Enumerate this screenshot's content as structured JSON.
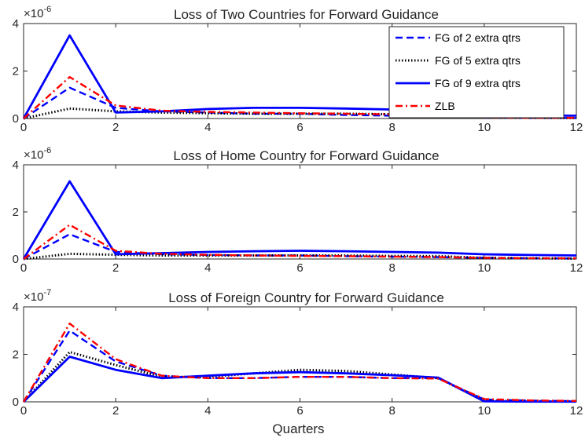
{
  "colors": {
    "fg2": "#0000ff",
    "fg5": "#000000",
    "fg9": "#0000ff",
    "zlb": "#ff0000"
  },
  "legend": {
    "placement": "top-right",
    "items": [
      "FG of 2 extra qtrs",
      "FG of 5 extra qtrs",
      "FG of 9 extra qtrs",
      "ZLB"
    ]
  },
  "chart_data": [
    {
      "type": "line",
      "title": "Loss of Two Countries for Forward Guidance",
      "xlabel": "",
      "ylabel": "",
      "exponent": "-6",
      "xlim": [
        0,
        12
      ],
      "ylim": [
        0,
        4
      ],
      "xticks": [
        "0",
        "2",
        "4",
        "6",
        "8",
        "10",
        "12"
      ],
      "yticks": [
        "0",
        "2",
        "4"
      ],
      "x": [
        0,
        1,
        2,
        3,
        4,
        5,
        6,
        7,
        8,
        9,
        10,
        11,
        12
      ],
      "series": [
        {
          "name": "FG of 2 extra qtrs",
          "style": "dashed",
          "values": [
            0,
            1.3,
            0.45,
            0.3,
            0.25,
            0.2,
            0.2,
            0.15,
            0.12,
            0.1,
            0.05,
            0.03,
            0.02
          ]
        },
        {
          "name": "FG of 5 extra qtrs",
          "style": "dotted",
          "values": [
            0,
            0.42,
            0.3,
            0.25,
            0.22,
            0.2,
            0.2,
            0.2,
            0.18,
            0.15,
            0.05,
            0.03,
            0.02
          ]
        },
        {
          "name": "FG of 9 extra qtrs",
          "style": "solid",
          "values": [
            0,
            3.5,
            0.25,
            0.3,
            0.4,
            0.45,
            0.45,
            0.42,
            0.38,
            0.33,
            0.15,
            0.13,
            0.12
          ]
        },
        {
          "name": "ZLB",
          "style": "dashdot",
          "values": [
            0,
            1.75,
            0.55,
            0.33,
            0.28,
            0.25,
            0.22,
            0.2,
            0.18,
            0.15,
            0.05,
            0.03,
            0.03
          ]
        }
      ]
    },
    {
      "type": "line",
      "title": "Loss of Home Country for Forward Guidance",
      "xlabel": "",
      "ylabel": "",
      "exponent": "-6",
      "xlim": [
        0,
        12
      ],
      "ylim": [
        0,
        4
      ],
      "xticks": [
        "0",
        "2",
        "4",
        "6",
        "8",
        "10",
        "12"
      ],
      "yticks": [
        "0",
        "2",
        "4"
      ],
      "x": [
        0,
        1,
        2,
        3,
        4,
        5,
        6,
        7,
        8,
        9,
        10,
        11,
        12
      ],
      "series": [
        {
          "name": "FG of 2 extra qtrs",
          "style": "dashed",
          "values": [
            0,
            1.05,
            0.3,
            0.2,
            0.17,
            0.15,
            0.15,
            0.12,
            0.1,
            0.08,
            0.05,
            0.03,
            0.02
          ]
        },
        {
          "name": "FG of 5 extra qtrs",
          "style": "dotted",
          "values": [
            0,
            0.22,
            0.18,
            0.15,
            0.15,
            0.15,
            0.15,
            0.15,
            0.13,
            0.12,
            0.05,
            0.03,
            0.02
          ]
        },
        {
          "name": "FG of 9 extra qtrs",
          "style": "solid",
          "values": [
            0,
            3.3,
            0.2,
            0.25,
            0.3,
            0.33,
            0.35,
            0.33,
            0.3,
            0.27,
            0.2,
            0.17,
            0.15
          ]
        },
        {
          "name": "ZLB",
          "style": "dashdot",
          "values": [
            0,
            1.45,
            0.35,
            0.22,
            0.18,
            0.15,
            0.13,
            0.12,
            0.1,
            0.08,
            0.05,
            0.03,
            0.03
          ]
        }
      ]
    },
    {
      "type": "line",
      "title": "Loss of Foreign Country for Forward Guidance",
      "xlabel": "Quarters",
      "ylabel": "",
      "exponent": "-7",
      "xlim": [
        0,
        12
      ],
      "ylim": [
        0,
        4
      ],
      "xticks": [
        "0",
        "2",
        "4",
        "6",
        "8",
        "10",
        "12"
      ],
      "yticks": [
        "0",
        "2",
        "4"
      ],
      "x": [
        0,
        1,
        2,
        3,
        4,
        5,
        6,
        7,
        8,
        9,
        10,
        11,
        12
      ],
      "series": [
        {
          "name": "FG of 2 extra qtrs",
          "style": "dashed",
          "values": [
            0,
            3.0,
            1.7,
            1.1,
            1.0,
            1.0,
            1.05,
            1.05,
            1.0,
            1.0,
            0.1,
            0.05,
            0.03
          ]
        },
        {
          "name": "FG of 5 extra qtrs",
          "style": "dotted",
          "values": [
            0,
            2.1,
            1.55,
            1.05,
            1.05,
            1.2,
            1.35,
            1.3,
            1.15,
            1.0,
            0.05,
            0.03,
            0.02
          ]
        },
        {
          "name": "FG of 9 extra qtrs",
          "style": "solid",
          "values": [
            0,
            1.9,
            1.35,
            1.0,
            1.1,
            1.2,
            1.25,
            1.2,
            1.12,
            1.02,
            0.02,
            0.01,
            0.01
          ]
        },
        {
          "name": "ZLB",
          "style": "dashdot",
          "values": [
            0,
            3.3,
            1.8,
            1.1,
            1.0,
            1.0,
            1.05,
            1.05,
            1.0,
            0.98,
            0.12,
            0.06,
            0.04
          ]
        }
      ]
    }
  ]
}
